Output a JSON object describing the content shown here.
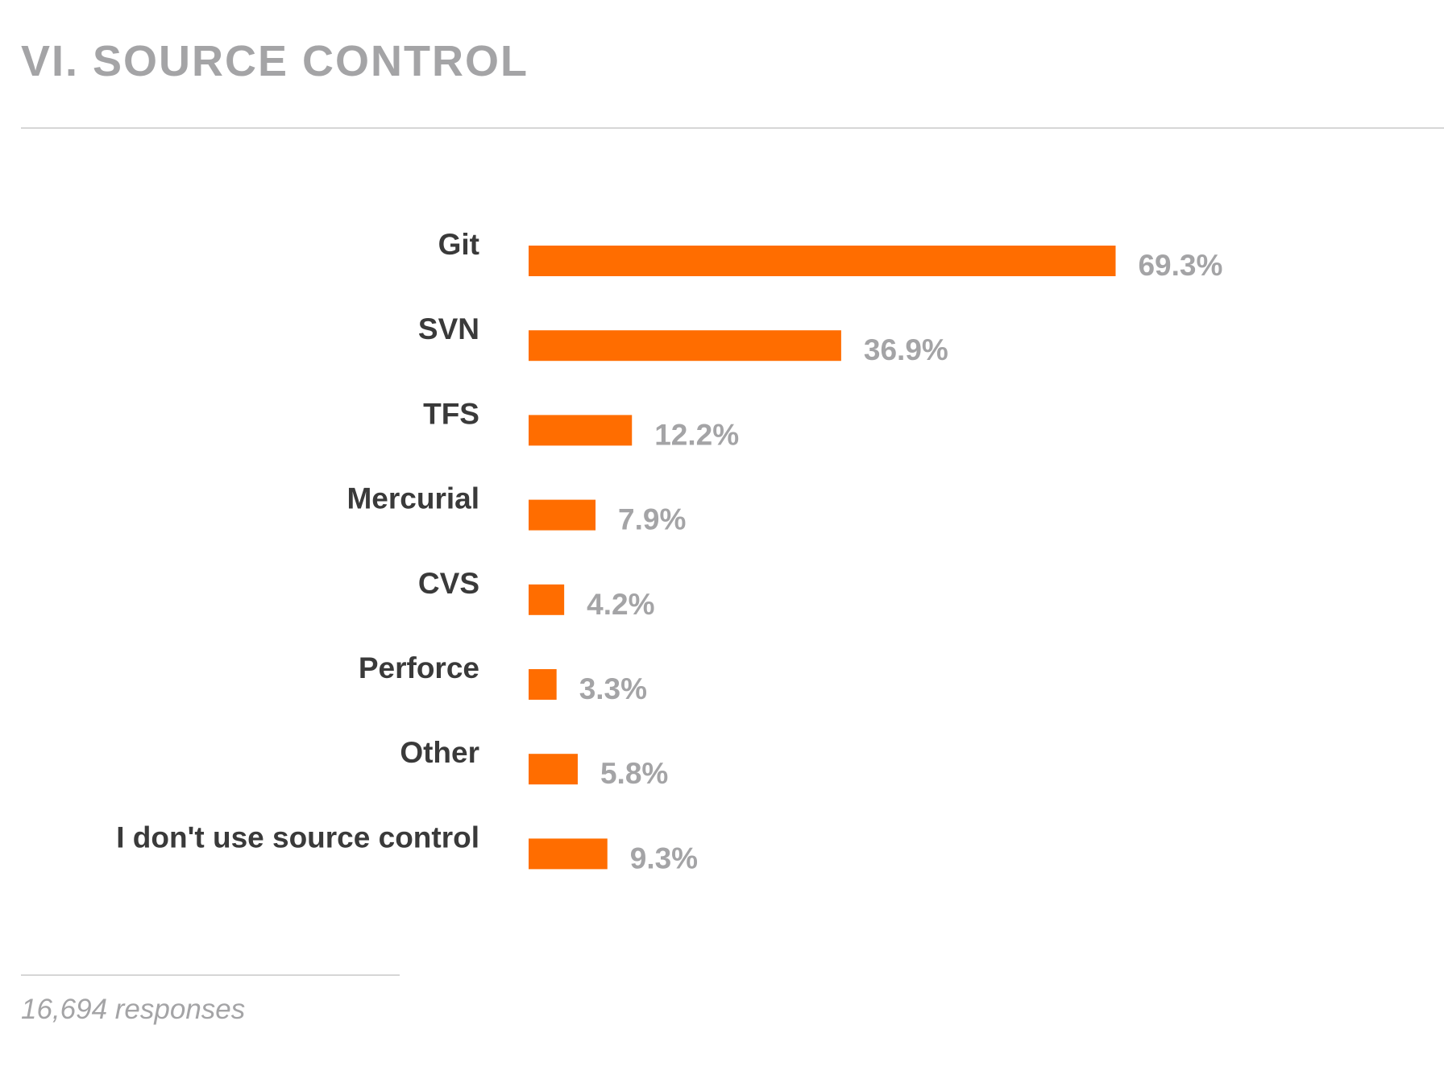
{
  "page": {
    "title": "VI. SOURCE CONTROL",
    "footnote": "16,694 responses"
  },
  "colors": {
    "bar": "#ff6d00",
    "category_label": "#3a3a3a",
    "value_label": "#a4a4a6",
    "title": "#a4a4a6",
    "rule": "#d6d6d6"
  },
  "chart_data": {
    "type": "bar",
    "orientation": "horizontal",
    "title": "",
    "xlabel": "",
    "ylabel": "",
    "categories": [
      "Git",
      "SVN",
      "TFS",
      "Mercurial",
      "CVS",
      "Perforce",
      "Other",
      "I don't use source control"
    ],
    "values": [
      69.3,
      36.9,
      12.2,
      7.9,
      4.2,
      3.3,
      5.8,
      9.3
    ],
    "value_labels": [
      "69.3%",
      "36.9%",
      "12.2%",
      "7.9%",
      "4.2%",
      "3.3%",
      "5.8%",
      "9.3%"
    ],
    "unit": "%",
    "xlim": [
      0,
      100
    ],
    "grid": false,
    "legend": "none"
  }
}
